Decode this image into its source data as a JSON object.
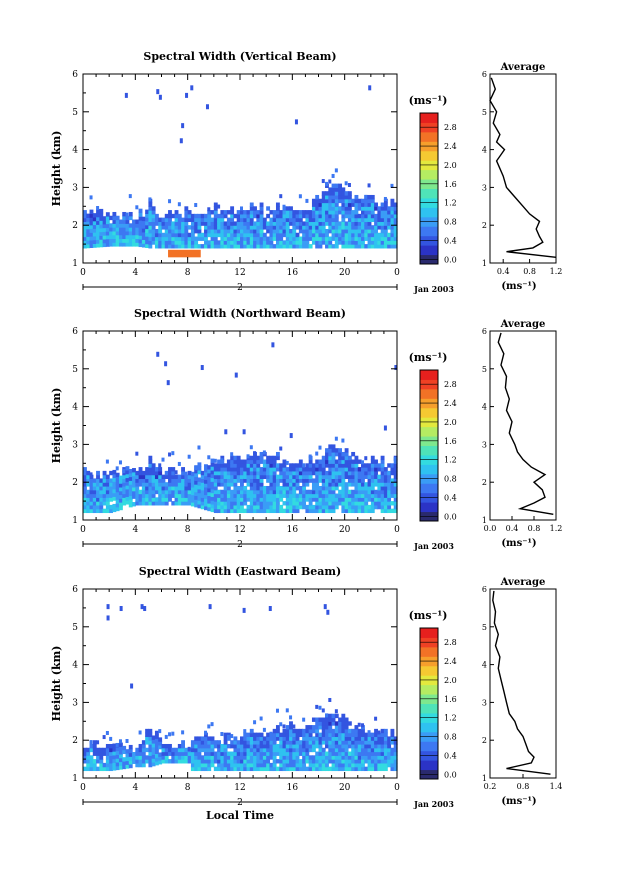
{
  "chart_data": [
    {
      "type": "heatmap",
      "title": "Spectral Width (Vertical Beam)",
      "ylabel": "Height (km)",
      "ylim": [
        1,
        6
      ],
      "xlim": [
        0,
        24
      ],
      "x_ticks": [
        "0",
        "4",
        "8",
        "12",
        "16",
        "20",
        "0"
      ],
      "y_ticks": [
        "1",
        "2",
        "3",
        "4",
        "5",
        "6"
      ],
      "date_label": "2",
      "month_label": "Jan 2003",
      "rain_band": {
        "x_range": [
          6.5,
          9.0
        ],
        "y_range": [
          1.15,
          1.35
        ],
        "value": 2.8
      },
      "echo_top_profile": {
        "x": [
          0,
          2,
          4,
          5,
          6,
          8,
          10,
          12,
          14,
          16,
          17,
          18,
          19,
          20,
          21,
          22,
          23,
          24
        ],
        "top_km": [
          2.3,
          2.3,
          2.2,
          2.6,
          2.2,
          2.3,
          2.4,
          2.4,
          2.4,
          2.4,
          2.4,
          2.8,
          3.0,
          2.9,
          2.6,
          2.7,
          2.6,
          2.6
        ],
        "base_km": [
          1.4,
          1.45,
          1.45,
          1.4,
          1.4,
          1.4,
          1.4,
          1.4,
          1.4,
          1.4,
          1.4,
          1.4,
          1.4,
          1.4,
          1.4,
          1.4,
          1.4,
          1.4
        ]
      },
      "sparse_echoes": [
        {
          "x": 3.2,
          "y": 5.5
        },
        {
          "x": 5.6,
          "y": 5.6
        },
        {
          "x": 5.8,
          "y": 5.45
        },
        {
          "x": 7.8,
          "y": 5.5
        },
        {
          "x": 8.2,
          "y": 5.7
        },
        {
          "x": 7.4,
          "y": 4.3
        },
        {
          "x": 7.5,
          "y": 4.7
        },
        {
          "x": 16.2,
          "y": 4.8
        },
        {
          "x": 21.8,
          "y": 5.7
        },
        {
          "x": 9.4,
          "y": 5.2
        }
      ],
      "average_profile": {
        "xlabel": "(ms⁻¹)",
        "title": "Average",
        "xlim": [
          0.2,
          1.2
        ],
        "x_ticks": [
          "0.4",
          "0.8",
          "1.2"
        ],
        "height": [
          1.15,
          1.3,
          1.4,
          1.55,
          1.7,
          1.9,
          2.1,
          2.3,
          2.5,
          2.8,
          3.0,
          3.3,
          3.7,
          4.0,
          4.2,
          4.4,
          4.7,
          5.0,
          5.3,
          5.6,
          5.9
        ],
        "value": [
          1.2,
          0.45,
          0.85,
          1.0,
          0.95,
          0.9,
          0.95,
          0.8,
          0.7,
          0.55,
          0.45,
          0.4,
          0.3,
          0.42,
          0.3,
          0.35,
          0.25,
          0.3,
          0.2,
          0.28,
          0.22
        ]
      }
    },
    {
      "type": "heatmap",
      "title": "Spectral Width (Northward Beam)",
      "ylabel": "Height (km)",
      "ylim": [
        1,
        6
      ],
      "xlim": [
        0,
        24
      ],
      "x_ticks": [
        "0",
        "4",
        "8",
        "12",
        "16",
        "20",
        "0"
      ],
      "y_ticks": [
        "1",
        "2",
        "3",
        "4",
        "5",
        "6"
      ],
      "date_label": "2",
      "month_label": "Jan 2003",
      "rain_band": null,
      "echo_top_profile": {
        "x": [
          0,
          2,
          4,
          5,
          6,
          8,
          10,
          12,
          14,
          16,
          17,
          18,
          19,
          20,
          21,
          22,
          23,
          24
        ],
        "top_km": [
          2.2,
          2.2,
          2.3,
          2.5,
          2.2,
          2.3,
          2.5,
          2.6,
          2.7,
          2.5,
          2.5,
          2.6,
          2.9,
          2.8,
          2.5,
          2.6,
          2.5,
          2.5
        ],
        "base_km": [
          1.2,
          1.2,
          1.4,
          1.4,
          1.4,
          1.4,
          1.2,
          1.2,
          1.2,
          1.2,
          1.2,
          1.2,
          1.2,
          1.2,
          1.2,
          1.2,
          1.2,
          1.2
        ]
      },
      "sparse_echoes": [
        {
          "x": 5.6,
          "y": 5.45
        },
        {
          "x": 6.2,
          "y": 5.2
        },
        {
          "x": 9.0,
          "y": 5.1
        },
        {
          "x": 11.6,
          "y": 4.9
        },
        {
          "x": 14.4,
          "y": 5.7
        },
        {
          "x": 6.4,
          "y": 4.7
        },
        {
          "x": 10.8,
          "y": 3.4
        },
        {
          "x": 12.2,
          "y": 3.4
        },
        {
          "x": 15.8,
          "y": 3.3
        },
        {
          "x": 23.8,
          "y": 5.1
        },
        {
          "x": 23.0,
          "y": 3.5
        }
      ],
      "average_profile": {
        "xlabel": "(ms⁻¹)",
        "title": "Average",
        "xlim": [
          0.0,
          1.2
        ],
        "x_ticks": [
          "0.0",
          "0.4",
          "0.8",
          "1.2"
        ],
        "height": [
          1.15,
          1.3,
          1.45,
          1.6,
          1.8,
          2.0,
          2.2,
          2.4,
          2.6,
          2.8,
          3.0,
          3.3,
          3.6,
          3.9,
          4.2,
          4.5,
          4.8,
          5.1,
          5.4,
          5.7,
          5.95
        ],
        "value": [
          1.15,
          0.55,
          0.8,
          1.0,
          0.95,
          0.8,
          1.0,
          0.75,
          0.6,
          0.5,
          0.45,
          0.35,
          0.4,
          0.3,
          0.35,
          0.28,
          0.3,
          0.2,
          0.25,
          0.15,
          0.2
        ]
      }
    },
    {
      "type": "heatmap",
      "title": "Spectral Width (Eastward Beam)",
      "ylabel": "Height (km)",
      "xlabel": "Local Time",
      "ylim": [
        1,
        6
      ],
      "xlim": [
        0,
        24
      ],
      "x_ticks": [
        "0",
        "4",
        "8",
        "12",
        "16",
        "20",
        "0"
      ],
      "y_ticks": [
        "1",
        "2",
        "3",
        "4",
        "5",
        "6"
      ],
      "date_label": "2",
      "month_label": "Jan 2003",
      "rain_band": null,
      "echo_top_profile": {
        "x": [
          0,
          2,
          4,
          5,
          6,
          8,
          8.1,
          10,
          12,
          14,
          16,
          17,
          18,
          19,
          20,
          21,
          22,
          23,
          24
        ],
        "top_km": [
          1.8,
          1.8,
          1.8,
          2.3,
          1.8,
          1.8,
          2.0,
          2.0,
          2.1,
          2.2,
          2.3,
          2.4,
          2.6,
          2.8,
          2.5,
          2.3,
          2.2,
          2.1,
          2.1
        ],
        "base_km": [
          1.2,
          1.2,
          1.3,
          1.3,
          1.4,
          1.4,
          1.2,
          1.2,
          1.2,
          1.2,
          1.2,
          1.2,
          1.2,
          1.2,
          1.2,
          1.2,
          1.2,
          1.2,
          1.2
        ]
      },
      "sparse_echoes": [
        {
          "x": 1.8,
          "y": 5.6
        },
        {
          "x": 2.8,
          "y": 5.55
        },
        {
          "x": 4.4,
          "y": 5.6
        },
        {
          "x": 4.6,
          "y": 5.55
        },
        {
          "x": 9.6,
          "y": 5.6
        },
        {
          "x": 12.2,
          "y": 5.5
        },
        {
          "x": 14.2,
          "y": 5.55
        },
        {
          "x": 18.4,
          "y": 5.6
        },
        {
          "x": 18.6,
          "y": 5.45
        },
        {
          "x": 3.6,
          "y": 3.5
        },
        {
          "x": 1.8,
          "y": 5.3
        }
      ],
      "average_profile": {
        "xlabel": "(ms⁻¹)",
        "title": "Average",
        "xlim": [
          0.2,
          1.4
        ],
        "x_ticks": [
          "0.2",
          "0.8",
          "1.4"
        ],
        "height": [
          1.1,
          1.25,
          1.4,
          1.55,
          1.7,
          1.9,
          2.1,
          2.3,
          2.5,
          2.7,
          3.0,
          3.3,
          3.6,
          3.9,
          4.2,
          4.5,
          4.8,
          5.1,
          5.4,
          5.7,
          5.95
        ],
        "value": [
          1.3,
          0.5,
          0.95,
          1.0,
          0.9,
          0.85,
          0.8,
          0.7,
          0.65,
          0.55,
          0.5,
          0.45,
          0.4,
          0.35,
          0.38,
          0.3,
          0.35,
          0.28,
          0.3,
          0.25,
          0.27
        ]
      }
    }
  ],
  "colorbar": {
    "label": "(ms⁻¹)",
    "tick_labels": [
      "0.0",
      "0.4",
      "0.8",
      "1.2",
      "1.6",
      "2.0",
      "2.4",
      "2.8"
    ],
    "colors": [
      "#2a2a6e",
      "#2b33c6",
      "#3355e0",
      "#3d78f2",
      "#3a9cf6",
      "#2fc2f0",
      "#33dbe0",
      "#4fe3b8",
      "#7ee88e",
      "#b5ec62",
      "#e3e93e",
      "#f5c932",
      "#f69f2c",
      "#f27226",
      "#ef4124",
      "#e6201e"
    ]
  }
}
